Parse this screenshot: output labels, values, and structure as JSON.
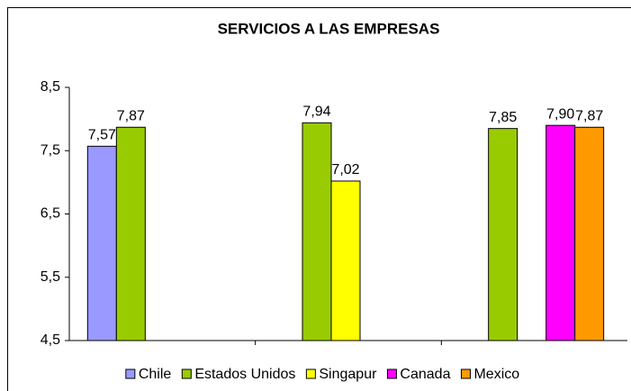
{
  "chart_data": {
    "type": "bar",
    "title": "SERVICIOS A LAS EMPRESAS",
    "categories": [
      null,
      null,
      null
    ],
    "series": [
      {
        "name": "Chile",
        "color": "#9999ff",
        "values": [
          7.57,
          null,
          null
        ],
        "value_labels": [
          "7,57",
          null,
          null
        ]
      },
      {
        "name": "Estados Unidos",
        "color": "#99cc00",
        "values": [
          7.87,
          7.94,
          7.85
        ],
        "value_labels": [
          "7,87",
          "7,94",
          "7,85"
        ]
      },
      {
        "name": "Singapur",
        "color": "#ffff00",
        "values": [
          null,
          7.02,
          null
        ],
        "value_labels": [
          null,
          "7,02",
          null
        ]
      },
      {
        "name": "Canada",
        "color": "#ff00ff",
        "values": [
          null,
          null,
          7.9
        ],
        "value_labels": [
          null,
          null,
          "7,90"
        ]
      },
      {
        "name": "Mexico",
        "color": "#ff9900",
        "values": [
          null,
          null,
          7.87
        ],
        "value_labels": [
          null,
          null,
          "7,87"
        ]
      }
    ],
    "ylim": [
      4.5,
      8.5
    ],
    "yticks": [
      {
        "value": 4.5,
        "label": "4,5"
      },
      {
        "value": 5.5,
        "label": "5,5"
      },
      {
        "value": 6.5,
        "label": "6,5"
      },
      {
        "value": 7.5,
        "label": "7,5"
      },
      {
        "value": 8.5,
        "label": "8,5"
      }
    ],
    "grid": false,
    "legend": "bottom"
  }
}
